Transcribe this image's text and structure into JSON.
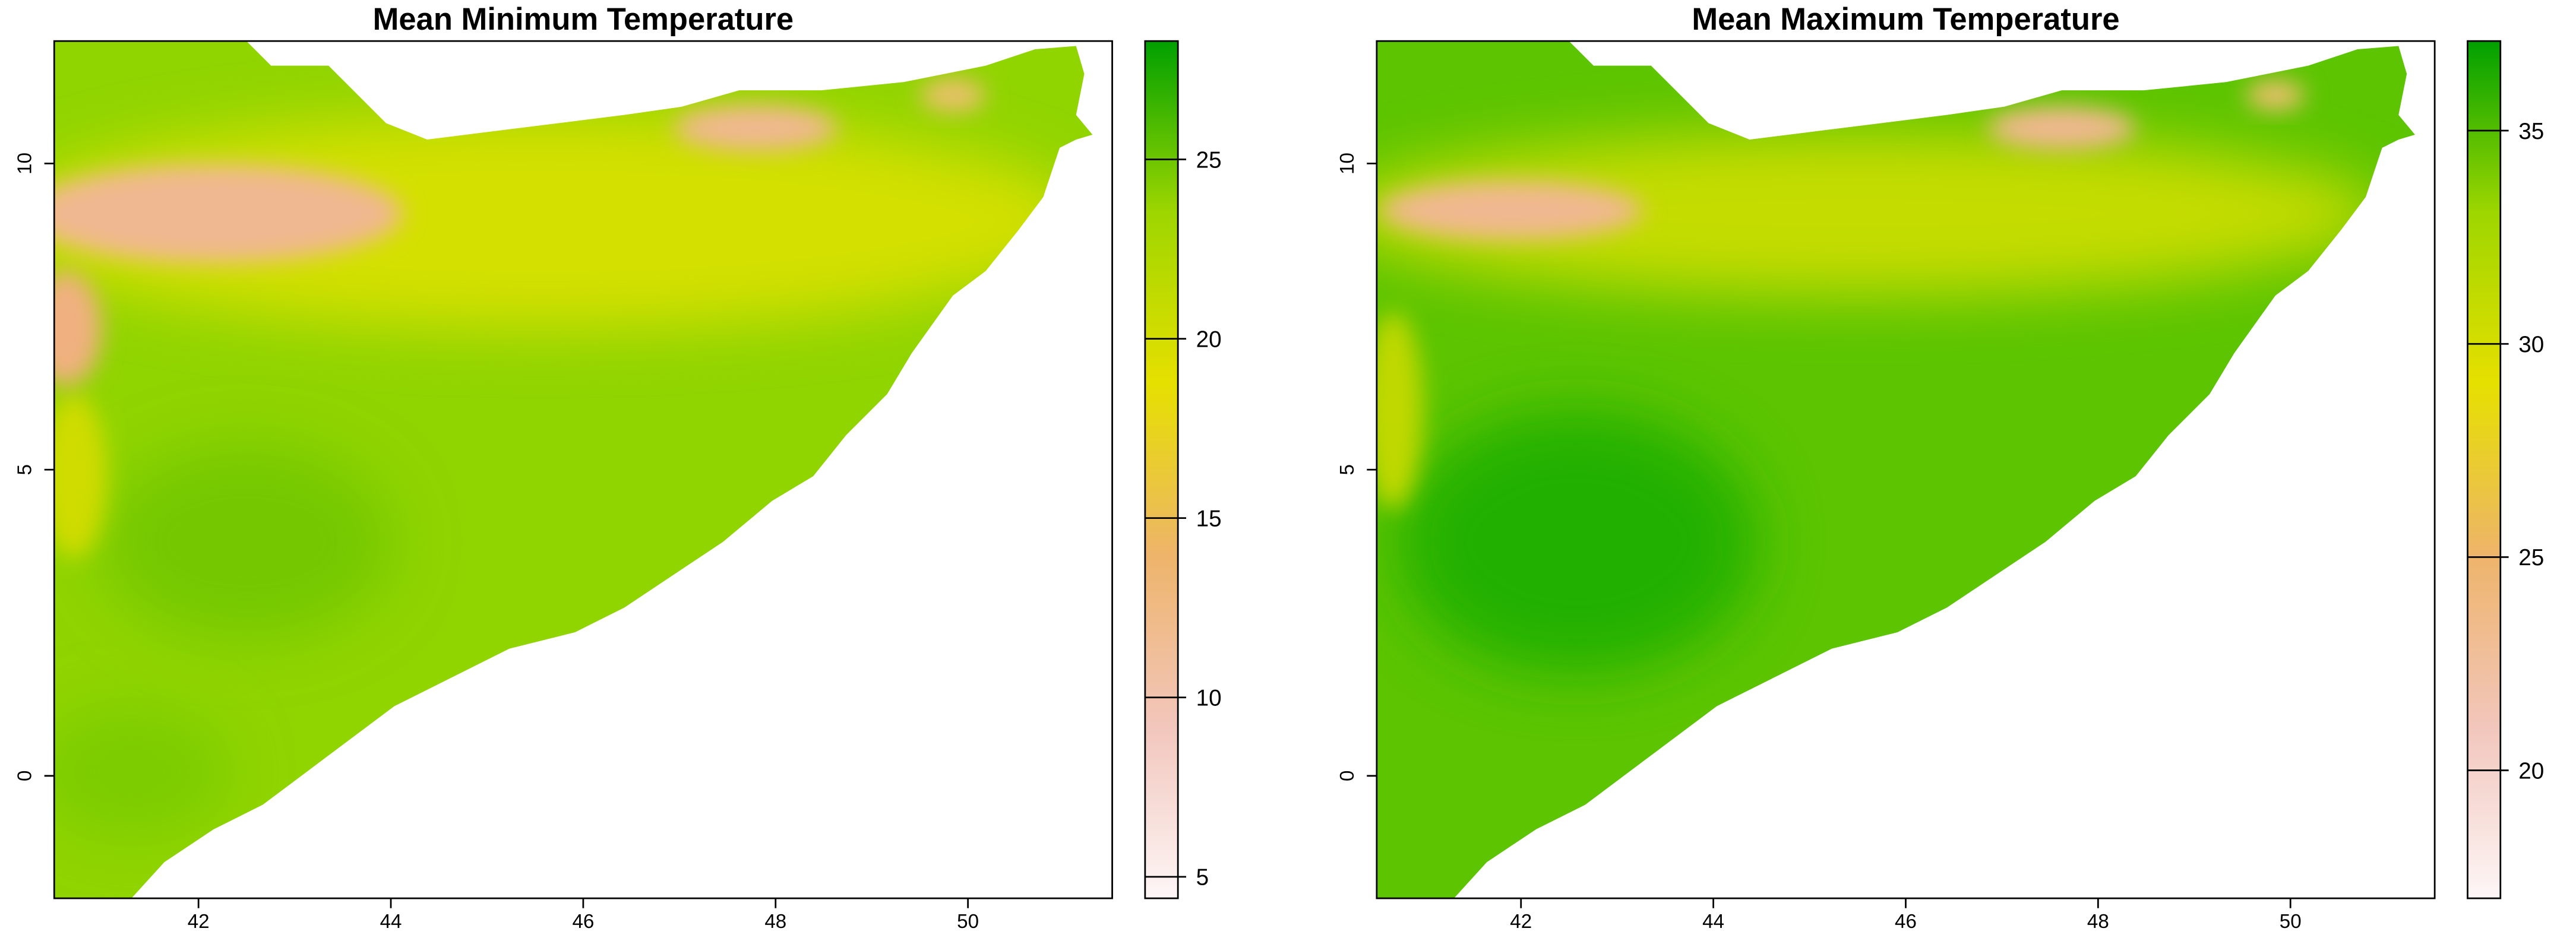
{
  "chart_data": [
    {
      "type": "raster",
      "title": "Mean Minimum Temperature",
      "xlim": [
        40.5,
        51.5
      ],
      "ylim": [
        -2,
        12
      ],
      "xticks": [
        42,
        44,
        46,
        48,
        50
      ],
      "yticks": [
        0,
        5,
        10
      ],
      "zlim": [
        4.4,
        28.3
      ],
      "zticks": [
        5,
        10,
        15,
        20,
        25
      ],
      "colors": [
        "#fdf6f6",
        "#f2c6bc",
        "#eeb46a",
        "#e6e000",
        "#9ed600",
        "#00a000"
      ]
    },
    {
      "type": "raster",
      "title": "Mean Maximum Temperature",
      "xlim": [
        40.5,
        51.5
      ],
      "ylim": [
        -2,
        12
      ],
      "xticks": [
        42,
        44,
        46,
        48,
        50
      ],
      "yticks": [
        0,
        5,
        10
      ],
      "zlim": [
        17,
        37.1
      ],
      "zticks": [
        20,
        25,
        30,
        35
      ],
      "colors": [
        "#fdf6f6",
        "#f2c6bc",
        "#eeb46a",
        "#e6e000",
        "#9ed600",
        "#00a000"
      ]
    }
  ]
}
